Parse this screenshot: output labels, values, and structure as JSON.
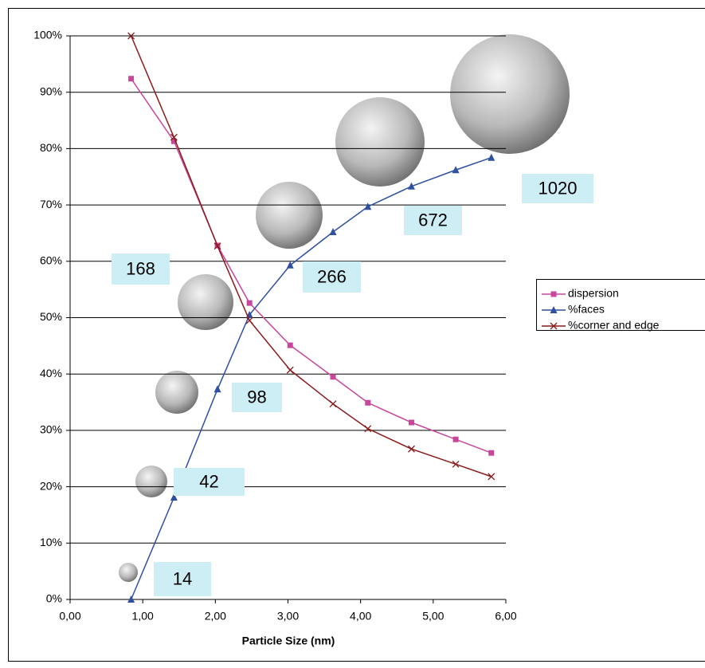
{
  "chart_data": {
    "type": "line",
    "x_label": "Particle Size (nm)",
    "x": [
      0.84,
      1.43,
      2.03,
      2.47,
      3.03,
      3.62,
      4.1,
      4.7,
      5.31,
      5.8
    ],
    "series": [
      {
        "name": "dispersion",
        "color": "#c8469c",
        "marker": "square",
        "values": [
          92.4,
          81.3,
          62.8,
          52.6,
          45.1,
          39.5,
          34.9,
          31.4,
          28.4,
          26.0
        ]
      },
      {
        "name": "%faces",
        "color": "#2f4fa0",
        "marker": "triangle",
        "values": [
          0,
          18.1,
          37.3,
          50.5,
          59.3,
          65.2,
          69.7,
          73.3,
          76.2,
          78.4
        ]
      },
      {
        "name": "%corner and edge",
        "color": "#8b1a1a",
        "marker": "x",
        "values": [
          100,
          82.0,
          62.7,
          49.5,
          40.7,
          34.7,
          30.3,
          26.7,
          24.0,
          21.8
        ]
      }
    ],
    "xlim": [
      0,
      6
    ],
    "xticks": [
      {
        "value": 0,
        "label": "0,00"
      },
      {
        "value": 1,
        "label": "1,00"
      },
      {
        "value": 2,
        "label": "2,00"
      },
      {
        "value": 3,
        "label": "3,00"
      },
      {
        "value": 4,
        "label": "4,00"
      },
      {
        "value": 5,
        "label": "5,00"
      },
      {
        "value": 6,
        "label": "6,00"
      }
    ],
    "ylim": [
      0,
      100
    ],
    "yticks": [
      {
        "value": 0,
        "label": "0%"
      },
      {
        "value": 10,
        "label": "10%"
      },
      {
        "value": 20,
        "label": "20%"
      },
      {
        "value": 30,
        "label": "30%"
      },
      {
        "value": 40,
        "label": "40%"
      },
      {
        "value": 50,
        "label": "50%"
      },
      {
        "value": 60,
        "label": "60%"
      },
      {
        "value": 70,
        "label": "70%"
      },
      {
        "value": 80,
        "label": "80%"
      },
      {
        "value": 90,
        "label": "90%"
      },
      {
        "value": 100,
        "label": "100%"
      }
    ],
    "grid": true,
    "legend": "right",
    "annotations": [
      "14",
      "42",
      "98",
      "168",
      "266",
      "672",
      "1020"
    ]
  }
}
